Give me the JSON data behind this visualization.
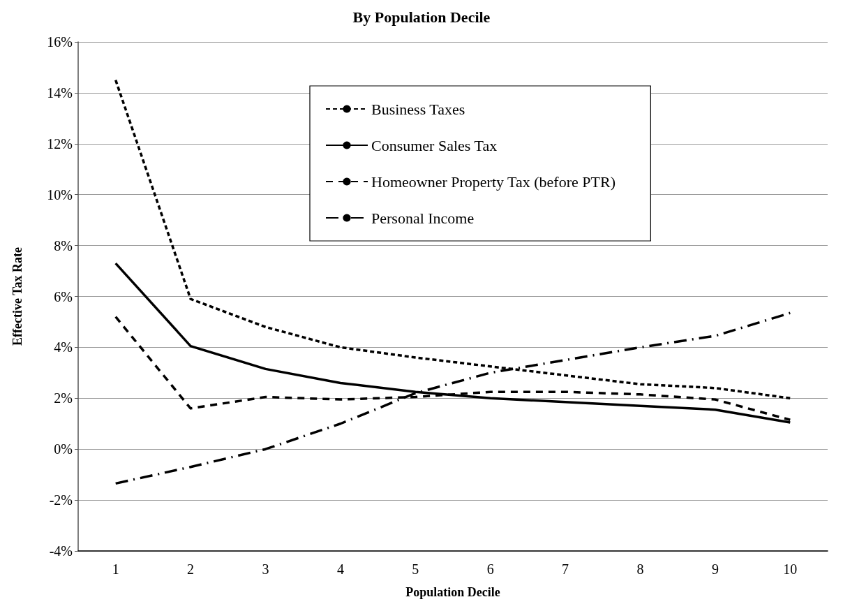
{
  "chart_data": {
    "type": "line",
    "title": "By Population Decile",
    "xlabel": "Population Decile",
    "ylabel": "Effective Tax Rate",
    "categories": [
      "1",
      "2",
      "3",
      "4",
      "5",
      "6",
      "7",
      "8",
      "9",
      "10"
    ],
    "series": [
      {
        "name": "Business Taxes",
        "color": "#000000",
        "line_style": "dotted",
        "values": [
          14.5,
          5.9,
          4.8,
          4.0,
          3.6,
          3.25,
          2.9,
          2.55,
          2.4,
          2.0
        ]
      },
      {
        "name": "Consumer Sales Tax",
        "color": "#000000",
        "line_style": "solid",
        "values": [
          7.3,
          4.05,
          3.15,
          2.6,
          2.25,
          2.0,
          1.85,
          1.7,
          1.55,
          1.05
        ]
      },
      {
        "name": "Homeowner Property Tax (before PTR)",
        "color": "#000000",
        "line_style": "dashed",
        "values": [
          5.2,
          1.6,
          2.05,
          1.95,
          2.05,
          2.25,
          2.25,
          2.15,
          1.95,
          1.15
        ]
      },
      {
        "name": "Personal Income",
        "color": "#000000",
        "line_style": "dashdot",
        "values": [
          -1.35,
          -0.7,
          0.0,
          1.0,
          2.2,
          3.0,
          3.5,
          4.0,
          4.45,
          5.35
        ]
      }
    ],
    "ylim": [
      -4,
      16
    ],
    "yticks": [
      {
        "value": -4,
        "label": "-4%"
      },
      {
        "value": -2,
        "label": "-2%"
      },
      {
        "value": 0,
        "label": "0%"
      },
      {
        "value": 2,
        "label": "2%"
      },
      {
        "value": 4,
        "label": "4%"
      },
      {
        "value": 6,
        "label": "6%"
      },
      {
        "value": 8,
        "label": "8%"
      },
      {
        "value": 10,
        "label": "10%"
      },
      {
        "value": 12,
        "label": "12%"
      },
      {
        "value": 14,
        "label": "14%"
      },
      {
        "value": 16,
        "label": "16%"
      }
    ],
    "grid": "y",
    "legend": "top",
    "marker": "none"
  }
}
